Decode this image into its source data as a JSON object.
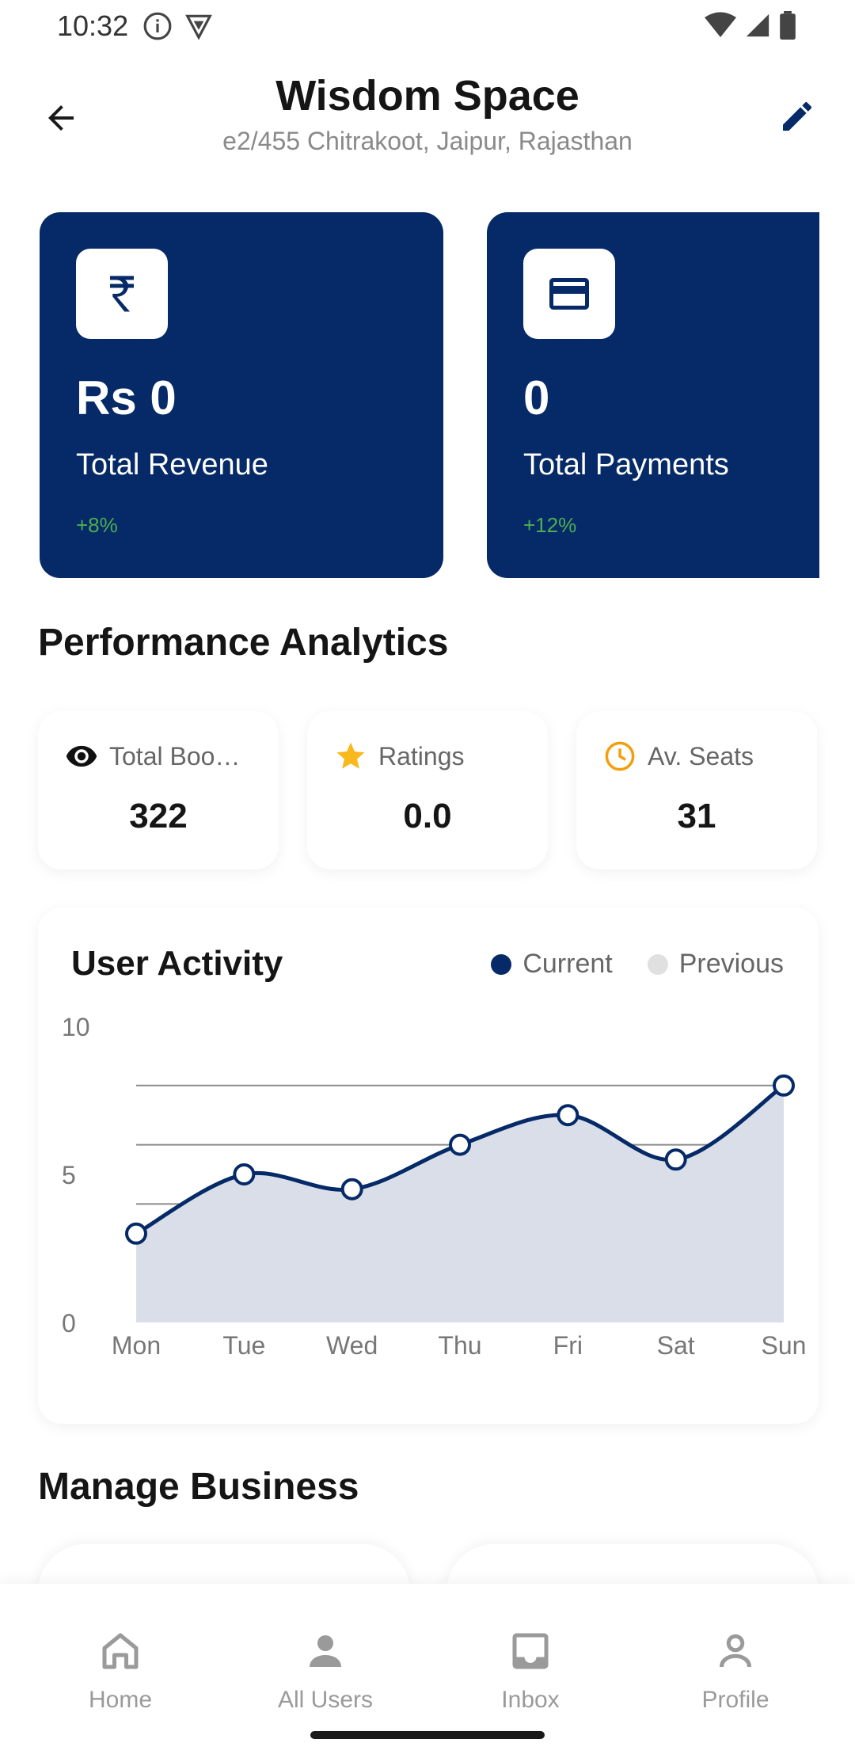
{
  "status": {
    "time": "10:32"
  },
  "header": {
    "title": "Wisdom Space",
    "subtitle": "e2/455 Chitrakoot, Jaipur, Rajasthan"
  },
  "stats": [
    {
      "icon": "rupee-icon",
      "value": "Rs 0",
      "label": "Total Revenue",
      "change": "+8%"
    },
    {
      "icon": "card-icon",
      "value": "0",
      "label": "Total Payments",
      "change": "+12%"
    }
  ],
  "performance": {
    "title": "Performance Analytics",
    "metrics": [
      {
        "icon": "eye-icon",
        "label": "Total Boo…",
        "value": "322"
      },
      {
        "icon": "star-icon",
        "label": "Ratings",
        "value": "0.0"
      },
      {
        "icon": "clock-icon",
        "label": "Av. Seats",
        "value": "31"
      }
    ]
  },
  "chart_data": {
    "type": "area",
    "title": "User Activity",
    "categories": [
      "Mon",
      "Tue",
      "Wed",
      "Thu",
      "Fri",
      "Sat",
      "Sun"
    ],
    "series": [
      {
        "name": "Current",
        "color": "#052a67",
        "values": [
          3,
          5,
          4.5,
          6,
          7,
          5.5,
          8
        ]
      }
    ],
    "legend": [
      {
        "name": "Current",
        "color": "#052a67"
      },
      {
        "name": "Previous",
        "color": "#e0e0e0"
      }
    ],
    "ylim": [
      0,
      10
    ],
    "yticks": [
      "10",
      "5",
      "0"
    ],
    "grid": true,
    "legend_position": "top-right"
  },
  "manage": {
    "title": "Manage Business"
  },
  "nav": {
    "items": [
      {
        "label": "Home",
        "icon": "home-icon"
      },
      {
        "label": "All Users",
        "icon": "user-icon"
      },
      {
        "label": "Inbox",
        "icon": "inbox-icon"
      },
      {
        "label": "Profile",
        "icon": "profile-icon"
      }
    ]
  },
  "colors": {
    "primary": "#052a67",
    "positive": "#4caf50",
    "star": "#f9b81b",
    "clock": "#f59e0b"
  }
}
